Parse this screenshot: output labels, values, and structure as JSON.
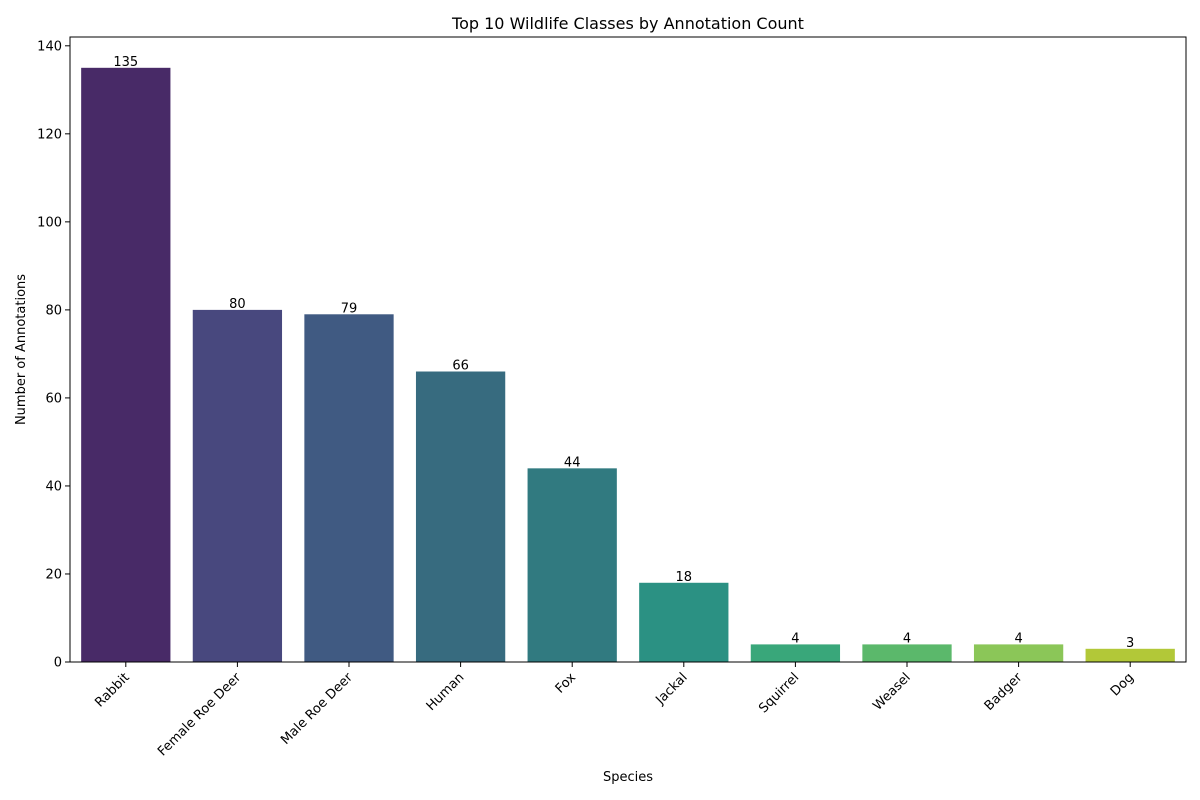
{
  "chart_data": {
    "type": "bar",
    "title": "Top 10 Wildlife Classes by Annotation Count",
    "xlabel": "Species",
    "ylabel": "Number of Annotations",
    "categories": [
      "Rabbit",
      "Female Roe Deer",
      "Male Roe Deer",
      "Human",
      "Fox",
      "Jackal",
      "Squirrel",
      "Weasel",
      "Badger",
      "Dog"
    ],
    "values": [
      135,
      80,
      79,
      66,
      44,
      18,
      4,
      4,
      4,
      3
    ],
    "colors": [
      "#482a67",
      "#48487e",
      "#405a82",
      "#376b7f",
      "#317a80",
      "#2b9183",
      "#39a77a",
      "#5bb86b",
      "#8bc658",
      "#b2c838"
    ],
    "ylim": [
      0,
      142
    ],
    "yticks": [
      0,
      20,
      40,
      60,
      80,
      100,
      120,
      140
    ],
    "grid": false,
    "legend": "none"
  }
}
